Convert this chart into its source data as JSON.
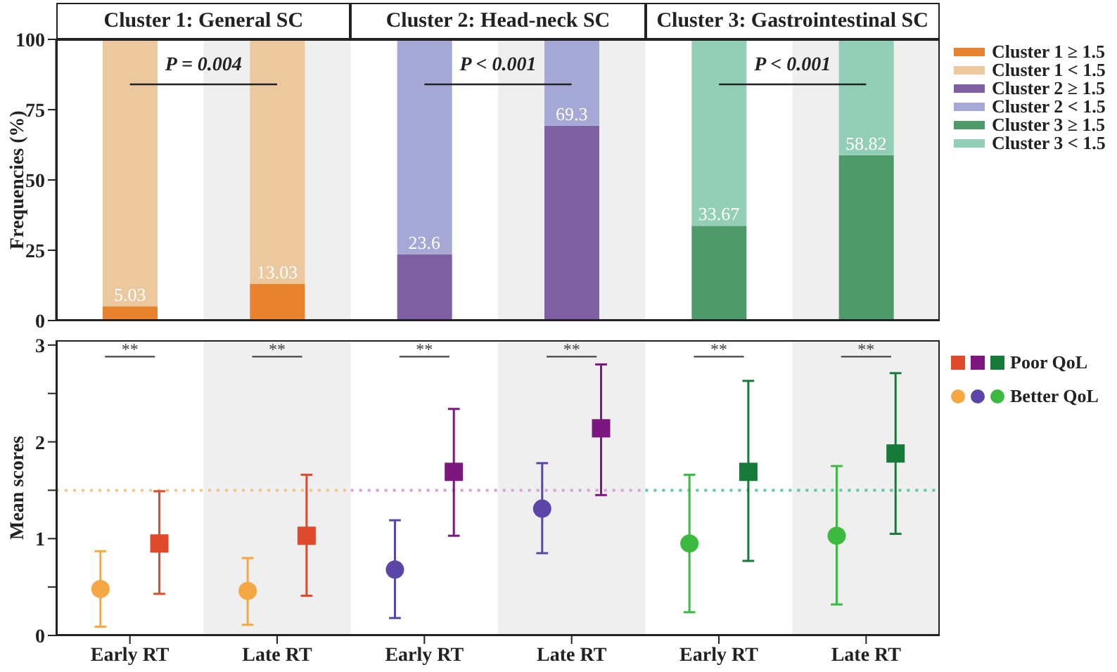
{
  "chart_data": [
    {
      "type": "bar",
      "stacked": true,
      "ylabel": "Frequencies (%)",
      "categories": [
        "Early RT",
        "Late RT",
        "Early RT",
        "Late RT",
        "Early RT",
        "Late RT"
      ],
      "tick_labels": "y",
      "ylim": [
        0,
        100
      ],
      "yticks": [
        0,
        25,
        50,
        75,
        100
      ],
      "grid": false,
      "legend": "top right",
      "series": [
        {
          "name": "Cluster 1 ≥ 1.5",
          "color": "#e8822e",
          "values": [
            5.03,
            13.03,
            null,
            null,
            null,
            null
          ],
          "value_labels": [
            "5.03",
            "13.03",
            null,
            null,
            null,
            null
          ]
        },
        {
          "name": "Cluster 1 < 1.5",
          "color": "#ecc89e",
          "values": [
            94.97,
            86.97,
            null,
            null,
            null,
            null
          ]
        },
        {
          "name": "Cluster 2 ≥ 1.5",
          "color": "#7e60a3",
          "values": [
            null,
            null,
            23.6,
            69.3,
            null,
            null
          ],
          "value_labels": [
            null,
            null,
            "23.6",
            "69.3",
            null,
            null
          ]
        },
        {
          "name": "Cluster 2 < 1.5",
          "color": "#a6a8d6",
          "values": [
            null,
            null,
            76.4,
            30.7,
            null,
            null
          ]
        },
        {
          "name": "Cluster 3 ≥ 1.5",
          "color": "#4f9a6a",
          "values": [
            null,
            null,
            null,
            null,
            33.67,
            58.82
          ],
          "value_labels": [
            null,
            null,
            null,
            null,
            "33.67",
            "58.82"
          ]
        },
        {
          "name": "Cluster 3 < 1.5",
          "color": "#93cfb6",
          "values": [
            null,
            null,
            null,
            null,
            66.33,
            41.18
          ]
        }
      ],
      "bands": [
        {
          "axis": "x",
          "from": "Late RT",
          "to": "Late RT",
          "color": "#efefef"
        }
      ],
      "annotations": [
        "Cluster 1: General SC",
        "P = 0.004",
        "Cluster 2: Head-neck SC",
        "P < 0.001",
        "Cluster 3: Gastrointestinal SC",
        "P < 0.001"
      ]
    },
    {
      "type": "scatter",
      "ylabel": "Mean scores",
      "categories": [
        "Early RT",
        "Late RT",
        "Early RT",
        "Late RT",
        "Early RT",
        "Late RT"
      ],
      "ylim": [
        0,
        3.05
      ],
      "yticks": [
        0,
        {
          "value": 0.5,
          "label": null
        },
        1,
        {
          "value": 1.5,
          "label": null
        },
        2,
        {
          "value": 2.5,
          "label": null
        },
        3
      ],
      "grid": false,
      "legend": "top right",
      "series": [
        {
          "name": "Poor QoL",
          "marker": "square",
          "colors": [
            "#e04a2c",
            "#e04a2c",
            "#7b177f",
            "#7b177f",
            "#17793a",
            "#17793a"
          ],
          "values": [
            0.95,
            1.03,
            1.69,
            2.14,
            1.69,
            1.88
          ],
          "errors": [
            [
              0.43,
              1.49
            ],
            [
              0.41,
              1.66
            ],
            [
              1.03,
              2.34
            ],
            [
              1.45,
              2.8
            ],
            [
              0.77,
              2.63
            ],
            [
              1.05,
              2.71
            ]
          ]
        },
        {
          "name": "Better QoL",
          "marker": "circle",
          "colors": [
            "#f5a743",
            "#f5a743",
            "#5b45a8",
            "#5b45a8",
            "#3cb93f",
            "#3cb93f"
          ],
          "values": [
            0.48,
            0.46,
            0.68,
            1.31,
            0.95,
            1.03
          ],
          "errors": [
            [
              0.09,
              0.87
            ],
            [
              0.11,
              0.8
            ],
            [
              0.18,
              1.19
            ],
            [
              0.85,
              1.78
            ],
            [
              0.24,
              1.66
            ],
            [
              0.32,
              1.75
            ]
          ]
        }
      ],
      "ref_lines": [
        {
          "axis": "y",
          "value": 1.5,
          "color": "#f5c585",
          "line_style": "dotted"
        },
        {
          "axis": "y",
          "value": 1.5,
          "color": "#d9a0d9",
          "line_style": "dotted"
        },
        {
          "axis": "y",
          "value": 1.5,
          "color": "#5fc9a0",
          "line_style": "dotted"
        }
      ],
      "bands": [
        {
          "axis": "x",
          "from": "Late RT",
          "to": "Late RT",
          "color": "#efefef"
        }
      ],
      "annotations": [
        "**",
        "**",
        "**",
        "**",
        "**",
        "**"
      ]
    }
  ]
}
